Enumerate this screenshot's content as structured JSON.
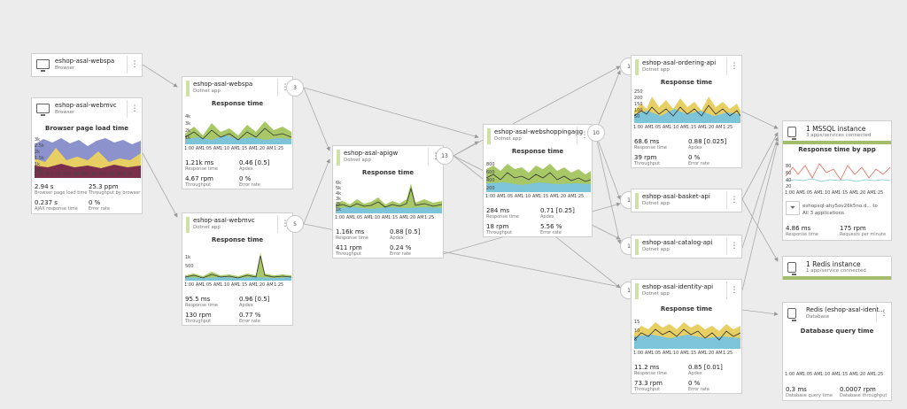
{
  "colors": {
    "dotnet_bar": "#cfe2a6",
    "area_green": "#a8c867",
    "area_blue": "#7ec4d8",
    "area_yellow": "#e7cf64",
    "area_purple": "#8c92cc",
    "area_maroon": "#7a2f4a",
    "line_dark": "#333333",
    "scatter_red": "#e06b5a",
    "selection_green": "#a4bd6c"
  },
  "time_ticks": [
    "1:00 AM",
    "1:05 AM",
    "1:10 AM",
    "1:15 AM",
    "1:20 AM",
    "1:25"
  ],
  "nodes": {
    "webspa_browser": {
      "name": "eshop-asal-webspa",
      "type": "Browser"
    },
    "webmvc_browser": {
      "name": "eshop-asal-webmvc",
      "type": "Browser",
      "chart_title": "Browser page load time",
      "y": [
        "3k",
        "2.5k",
        "2k",
        "1.5k",
        "1k",
        "500"
      ],
      "m1": "2.94 s",
      "m1l": "Browser page load time",
      "m2": "25.3 ppm",
      "m2l": "Throughput by browser",
      "m3": "0.237 s",
      "m3l": "AJAX response time",
      "m4": "0 %",
      "m4l": "Error rate"
    },
    "webspa_app": {
      "name": "eshop-asal-webspa",
      "type": "Dotnet app",
      "badge": "3",
      "chart_title": "Response time",
      "y": [
        "4k",
        "3k",
        "2k",
        "1k"
      ],
      "m1": "1.21k ms",
      "m1l": "Response time",
      "m2": "0.46 [0.5]",
      "m2l": "Apdex",
      "m3": "4.67 rpm",
      "m3l": "Throughput",
      "m4": "0 %",
      "m4l": "Error rate"
    },
    "webmvc_app": {
      "name": "eshop-asal-webmvc",
      "type": "Dotnet app",
      "badge": "5",
      "chart_title": "Response time",
      "y": [
        "1k",
        "500"
      ],
      "m1": "95.5 ms",
      "m1l": "Response time",
      "m2": "0.96 [0.5]",
      "m2l": "Apdex",
      "m3": "130 rpm",
      "m3l": "Throughput",
      "m4": "0.77 %",
      "m4l": "Error rate"
    },
    "apigw": {
      "name": "eshop-asal-apigw",
      "type": "Dotnet app",
      "badge": "13",
      "chart_title": "Response time",
      "y": [
        "6k",
        "5k",
        "4k",
        "3k",
        "2k",
        "1k"
      ],
      "m1": "1.16k ms",
      "m1l": "Response time",
      "m2": "0.88 [0.5]",
      "m2l": "Apdex",
      "m3": "411 rpm",
      "m3l": "Throughput",
      "m4": "0.24 %",
      "m4l": "Error rate"
    },
    "shoppingagg": {
      "name": "eshop-asal-webshoppingagg",
      "type": "Dotnet app",
      "badge": "10",
      "chart_title": "Response time",
      "y": [
        "800",
        "600",
        "400",
        "200"
      ],
      "m1": "284 ms",
      "m1l": "Response time",
      "m2": "0.71 [0.25]",
      "m2l": "Apdex",
      "m3": "18 rpm",
      "m3l": "Throughput",
      "m4": "5.56 %",
      "m4l": "Error rate"
    },
    "ordering": {
      "name": "eshop-asal-ordering-api",
      "type": "Dotnet app",
      "badge": "1",
      "chart_title": "Response time",
      "y": [
        "250",
        "200",
        "150",
        "100",
        "50"
      ],
      "m1": "68.6 ms",
      "m1l": "Response time",
      "m2": "0.88 [0.025]",
      "m2l": "Apdex",
      "m3": "39 rpm",
      "m3l": "Throughput",
      "m4": "0 %",
      "m4l": "Error rate"
    },
    "basket": {
      "name": "eshop-asal-basket-api",
      "type": "Dotnet app",
      "badge": "1"
    },
    "catalog": {
      "name": "eshop-asal-catalog-api",
      "type": "Dotnet app",
      "badge": "1"
    },
    "identity": {
      "name": "eshop-asal-identity-api",
      "type": "Dotnet app",
      "badge": "1",
      "chart_title": "Response time",
      "y": [
        "15",
        "10",
        "5"
      ],
      "m1": "11.2 ms",
      "m1l": "Response time",
      "m2": "0.85 [0.01]",
      "m2l": "Apdex",
      "m3": "73.3 rpm",
      "m3l": "Throughput",
      "m4": "0 %",
      "m4l": "Error rate"
    },
    "mssql": {
      "name": "1 MSSQL instance",
      "type": "3 apps/services connected",
      "chart_title": "Response time by app",
      "y": [
        "80",
        "60",
        "40",
        "20"
      ],
      "db_name": "eshopsql-ahy5ov26k5no.d... to",
      "db_sub": "All 3 applications",
      "m1": "4.86 ms",
      "m1l": "Response time",
      "m2": "175 rpm",
      "m2l": "Requests per minute"
    },
    "redis": {
      "name": "1 Redis instance",
      "type": "1 app/service connected"
    },
    "redis_db": {
      "name": "Redis (eshop-asal-ident...",
      "type": "Database",
      "chart_title": "Database query time",
      "m1": "0.3 ms",
      "m1l": "Database query time",
      "m2": "0.0007 rpm",
      "m2l": "Database throughput"
    }
  }
}
